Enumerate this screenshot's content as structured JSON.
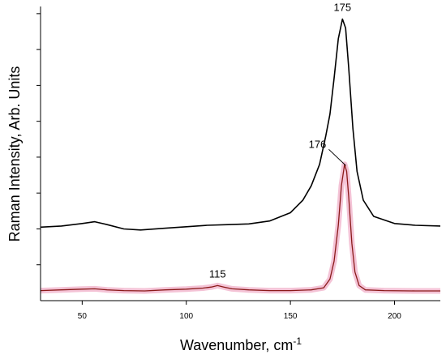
{
  "chart_data": {
    "type": "line",
    "title": "",
    "xlabel": "Wavenumber, cm",
    "xlabel_superscript": "-1",
    "ylabel": "Raman Intensity, Arb. Units",
    "xlim": [
      30,
      222
    ],
    "ylim": [
      0,
      8.2
    ],
    "x_ticks": [
      50,
      100,
      150,
      200
    ],
    "x_tick_labels": [
      "50",
      "100",
      "150",
      "200"
    ],
    "y_ticks": [
      1,
      2,
      3,
      4,
      5,
      6,
      7,
      8
    ],
    "y_tick_labels_visible": false,
    "grid": false,
    "legend": "none",
    "series": [
      {
        "color": "#000000",
        "points": [
          [
            30,
            2.05
          ],
          [
            40,
            2.08
          ],
          [
            50,
            2.15
          ],
          [
            56,
            2.2
          ],
          [
            62,
            2.12
          ],
          [
            70,
            2.0
          ],
          [
            78,
            1.97
          ],
          [
            90,
            2.02
          ],
          [
            100,
            2.06
          ],
          [
            110,
            2.1
          ],
          [
            120,
            2.12
          ],
          [
            130,
            2.14
          ],
          [
            140,
            2.22
          ],
          [
            150,
            2.45
          ],
          [
            156,
            2.8
          ],
          [
            160,
            3.2
          ],
          [
            164,
            3.8
          ],
          [
            167,
            4.6
          ],
          [
            169,
            5.2
          ],
          [
            171,
            6.2
          ],
          [
            173,
            7.3
          ],
          [
            175,
            7.85
          ],
          [
            176.5,
            7.6
          ],
          [
            178,
            6.5
          ],
          [
            180,
            4.8
          ],
          [
            182,
            3.6
          ],
          [
            185,
            2.8
          ],
          [
            190,
            2.35
          ],
          [
            200,
            2.15
          ],
          [
            210,
            2.1
          ],
          [
            222,
            2.08
          ]
        ]
      },
      {
        "color": "#8b1a1a",
        "fill_color": "#f2b8cf",
        "points": [
          [
            30,
            0.28
          ],
          [
            40,
            0.3
          ],
          [
            50,
            0.32
          ],
          [
            56,
            0.33
          ],
          [
            62,
            0.3
          ],
          [
            70,
            0.28
          ],
          [
            80,
            0.27
          ],
          [
            90,
            0.3
          ],
          [
            100,
            0.32
          ],
          [
            108,
            0.35
          ],
          [
            112,
            0.38
          ],
          [
            115,
            0.42
          ],
          [
            118,
            0.38
          ],
          [
            122,
            0.33
          ],
          [
            130,
            0.3
          ],
          [
            140,
            0.28
          ],
          [
            150,
            0.28
          ],
          [
            160,
            0.3
          ],
          [
            166,
            0.36
          ],
          [
            169,
            0.6
          ],
          [
            171,
            1.1
          ],
          [
            173,
            2.1
          ],
          [
            174.5,
            3.2
          ],
          [
            176,
            3.8
          ],
          [
            177,
            3.6
          ],
          [
            178,
            2.9
          ],
          [
            179.5,
            1.6
          ],
          [
            181,
            0.8
          ],
          [
            183,
            0.42
          ],
          [
            186,
            0.3
          ],
          [
            195,
            0.28
          ],
          [
            210,
            0.27
          ],
          [
            222,
            0.27
          ]
        ]
      }
    ],
    "annotations": [
      {
        "text": "175",
        "x": 175,
        "y": 7.85,
        "leader": false
      },
      {
        "text": "176",
        "x": 177,
        "y": 3.72,
        "leader": true
      },
      {
        "text": "115",
        "x": 115,
        "y": 0.42,
        "leader": false
      }
    ]
  }
}
